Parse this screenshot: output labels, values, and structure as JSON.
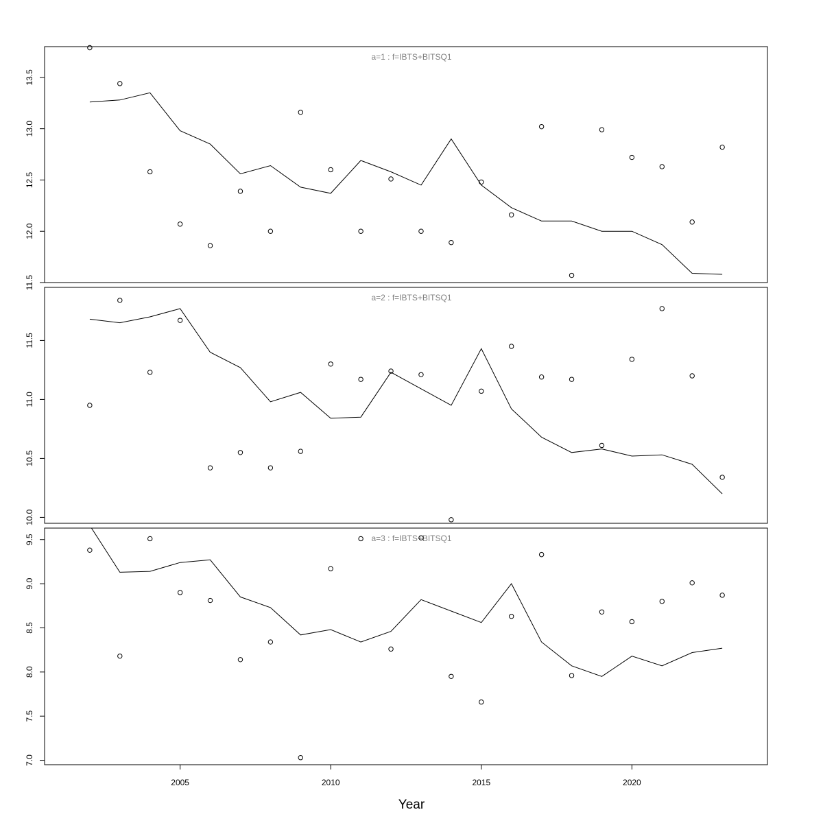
{
  "chart_data": {
    "type": "scatter",
    "xlabel": "Year",
    "x_ticks": [
      2005,
      2010,
      2015,
      2020
    ],
    "panels": [
      {
        "title": "a=1  :  f=IBTS+BITSQ1",
        "ylim": [
          11.5,
          13.8
        ],
        "y_ticks": [
          11.5,
          12.0,
          12.5,
          13.0,
          13.5
        ],
        "y_tick_labels": [
          "11.5",
          "12.0",
          "12.5",
          "13.0",
          "13.5"
        ],
        "points": {
          "x": [
            2002,
            2003,
            2004,
            2005,
            2006,
            2007,
            2008,
            2009,
            2010,
            2011,
            2012,
            2013,
            2014,
            2015,
            2016,
            2017,
            2018,
            2019,
            2020,
            2021,
            2022,
            2023
          ],
          "y": [
            13.79,
            13.44,
            12.58,
            12.07,
            11.86,
            12.39,
            12.0,
            13.16,
            12.6,
            12.0,
            12.51,
            12.0,
            11.89,
            12.48,
            12.16,
            13.02,
            11.57,
            12.99,
            12.72,
            12.63,
            12.09,
            12.82
          ]
        },
        "line": {
          "x": [
            2002,
            2003,
            2004,
            2005,
            2006,
            2007,
            2008,
            2009,
            2010,
            2011,
            2012,
            2013,
            2014,
            2015,
            2016,
            2017,
            2018,
            2019,
            2020,
            2021,
            2022,
            2023
          ],
          "y": [
            13.26,
            13.28,
            13.35,
            12.98,
            12.85,
            12.56,
            12.64,
            12.43,
            12.37,
            12.69,
            12.58,
            12.45,
            12.9,
            12.45,
            12.23,
            12.1,
            12.1,
            12.0,
            12.0,
            11.87,
            11.59,
            11.58
          ]
        }
      },
      {
        "title": "a=2  :  f=IBTS+BITSQ1",
        "ylim": [
          9.95,
          11.95
        ],
        "y_ticks": [
          10.0,
          10.5,
          11.0,
          11.5
        ],
        "y_tick_labels": [
          "10.0",
          "10.5",
          "11.0",
          "11.5"
        ],
        "points": {
          "x": [
            2002,
            2003,
            2004,
            2005,
            2006,
            2007,
            2008,
            2009,
            2010,
            2011,
            2012,
            2013,
            2014,
            2015,
            2016,
            2017,
            2018,
            2019,
            2020,
            2021,
            2022,
            2023
          ],
          "y": [
            10.95,
            11.84,
            11.23,
            11.67,
            10.42,
            10.55,
            10.42,
            10.56,
            11.3,
            11.17,
            11.24,
            11.21,
            9.98,
            11.07,
            11.45,
            11.19,
            11.17,
            10.61,
            11.34,
            11.77,
            11.2,
            10.34
          ]
        },
        "line": {
          "x": [
            2002,
            2003,
            2004,
            2005,
            2006,
            2007,
            2008,
            2009,
            2010,
            2011,
            2012,
            2013,
            2014,
            2015,
            2016,
            2017,
            2018,
            2019,
            2020,
            2021,
            2022,
            2023
          ],
          "y": [
            11.68,
            11.65,
            11.7,
            11.77,
            11.4,
            11.27,
            10.98,
            11.06,
            10.84,
            10.85,
            11.23,
            11.09,
            10.95,
            11.43,
            10.92,
            10.68,
            10.55,
            10.58,
            10.52,
            10.53,
            10.45,
            10.2
          ]
        }
      },
      {
        "title": "a=3  :  f=IBTS+BITSQ1",
        "ylim": [
          6.95,
          9.63
        ],
        "y_ticks": [
          7.0,
          7.5,
          8.0,
          8.5,
          9.0,
          9.5
        ],
        "y_tick_labels": [
          "7.0",
          "7.5",
          "8.0",
          "8.5",
          "9.0",
          "9.5"
        ],
        "points": {
          "x": [
            2002,
            2003,
            2004,
            2005,
            2006,
            2007,
            2008,
            2009,
            2010,
            2011,
            2012,
            2013,
            2014,
            2015,
            2016,
            2017,
            2018,
            2019,
            2020,
            2021,
            2022,
            2023
          ],
          "y": [
            9.38,
            8.18,
            9.51,
            8.9,
            8.81,
            8.14,
            8.34,
            7.03,
            9.17,
            9.51,
            8.26,
            9.52,
            7.95,
            7.66,
            8.63,
            9.33,
            7.96,
            8.68,
            8.57,
            8.8,
            9.01,
            8.87
          ]
        },
        "line": {
          "x": [
            2002,
            2003,
            2004,
            2005,
            2006,
            2007,
            2008,
            2009,
            2010,
            2011,
            2012,
            2013,
            2014,
            2015,
            2016,
            2017,
            2018,
            2019,
            2020,
            2021,
            2022,
            2023
          ],
          "y": [
            9.66,
            9.13,
            9.14,
            9.24,
            9.27,
            8.85,
            8.73,
            8.42,
            8.48,
            8.34,
            8.46,
            8.82,
            8.69,
            8.56,
            9.0,
            8.34,
            8.07,
            7.95,
            8.18,
            8.07,
            8.22,
            8.27
          ]
        }
      }
    ]
  }
}
